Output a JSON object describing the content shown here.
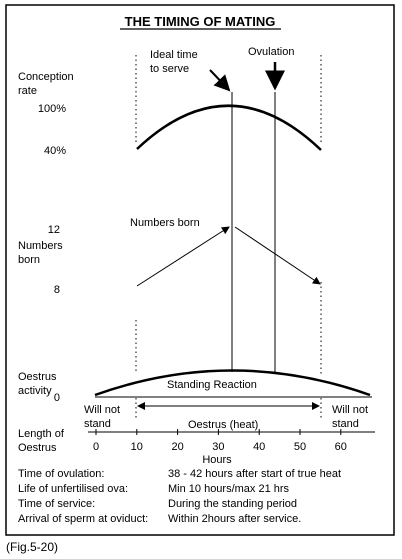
{
  "header": {
    "title": "THE TIMING OF MATING"
  },
  "left_labels": {
    "conception_rate": [
      "Conception",
      "rate"
    ],
    "pct_100": "100%",
    "pct_40": "40%",
    "born_12": "12",
    "numbers_born": [
      "Numbers",
      "born"
    ],
    "born_8": "8",
    "oestrus_activity": [
      "Oestrus",
      "activity"
    ],
    "zero": "0",
    "length_of_oestrus": [
      "Length of",
      "Oestrus"
    ]
  },
  "annotations": {
    "ideal_time": [
      "Ideal time",
      "to serve"
    ],
    "ovulation": "Ovulation",
    "numbers_born": "Numbers born",
    "standing_reaction": "Standing Reaction",
    "will_not_stand_left": [
      "Will not",
      "stand"
    ],
    "will_not_stand_right": [
      "Will not",
      "stand"
    ],
    "oestrus_heat": "Oestrus (heat)"
  },
  "hours_axis": {
    "label": "Hours",
    "ticks": [
      0,
      10,
      20,
      30,
      40,
      50,
      60
    ]
  },
  "info": {
    "rows": [
      [
        "Time of ovulation:",
        "38 - 42 hours after start of true heat"
      ],
      [
        "Life of unfertilised ova:",
        "Min 10 hours/max 21 hrs"
      ],
      [
        "Time of service:",
        "During the standing period"
      ],
      [
        "Arrival of sperm at oviduct:",
        "Within 2hours after service."
      ]
    ]
  },
  "caption": "(Fig.5-20)"
}
